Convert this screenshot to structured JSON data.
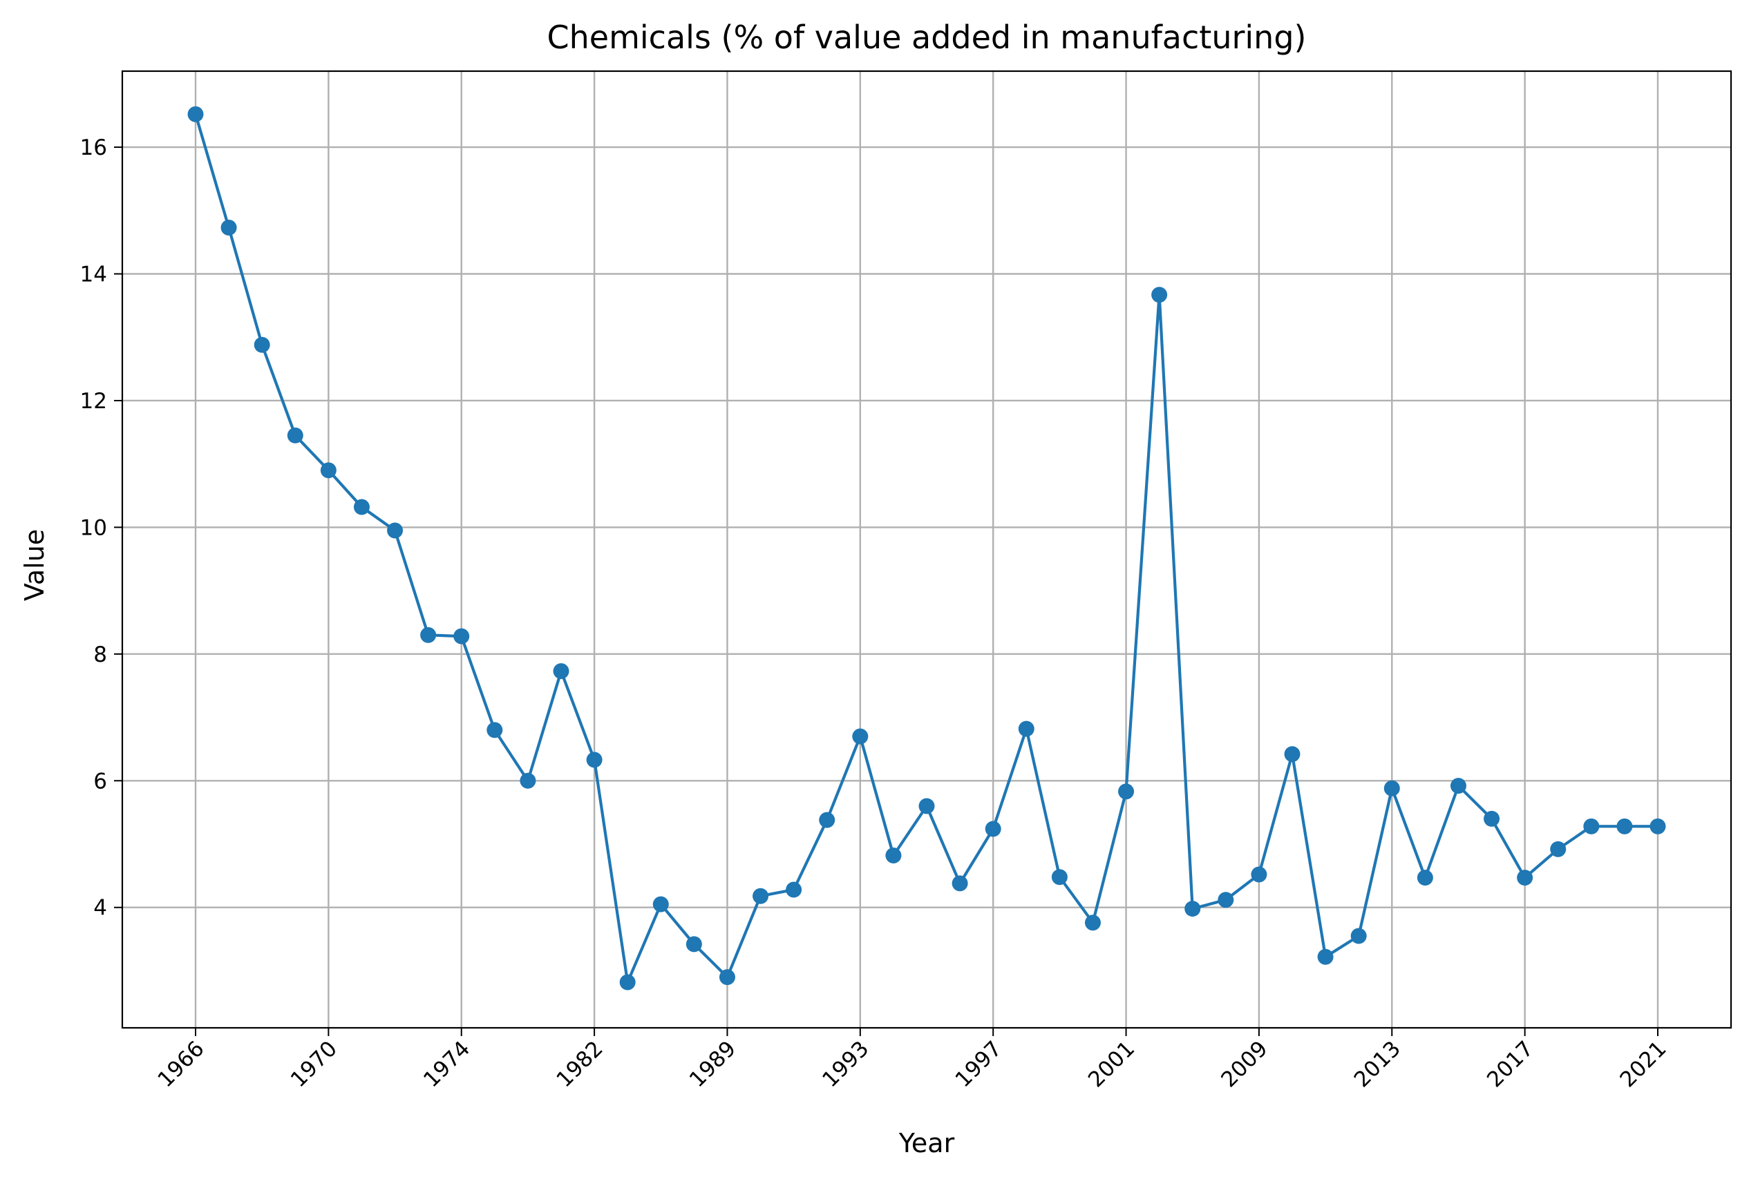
{
  "chart_data": {
    "type": "line",
    "title": "Chemicals (% of value added in manufacturing)",
    "xlabel": "Year",
    "ylabel": "Value",
    "x_tick_labels": [
      "1966",
      "1970",
      "1974",
      "1982",
      "1989",
      "1993",
      "1997",
      "2001",
      "2009",
      "2013",
      "2017",
      "2021"
    ],
    "y_ticks": [
      4,
      6,
      8,
      10,
      12,
      14,
      16
    ],
    "y_tick_labels": [
      "4",
      "6",
      "8",
      "10",
      "12",
      "14",
      "16"
    ],
    "ylim": [
      2.1,
      17.2
    ],
    "grid": true,
    "marker": "circle",
    "series": [
      {
        "color": "#1f77b4",
        "values": [
          16.52,
          14.73,
          12.88,
          11.45,
          10.9,
          10.32,
          9.95,
          8.3,
          8.28,
          6.8,
          6.0,
          7.73,
          6.33,
          2.82,
          4.05,
          3.42,
          2.9,
          4.18,
          4.28,
          5.38,
          6.7,
          4.82,
          5.6,
          4.38,
          5.24,
          6.82,
          4.48,
          3.76,
          5.83,
          13.67,
          3.98,
          4.12,
          4.52,
          6.42,
          3.22,
          3.55,
          5.88,
          4.47,
          5.92,
          5.4,
          4.47,
          4.92,
          5.28,
          5.28,
          5.28
        ]
      }
    ]
  }
}
